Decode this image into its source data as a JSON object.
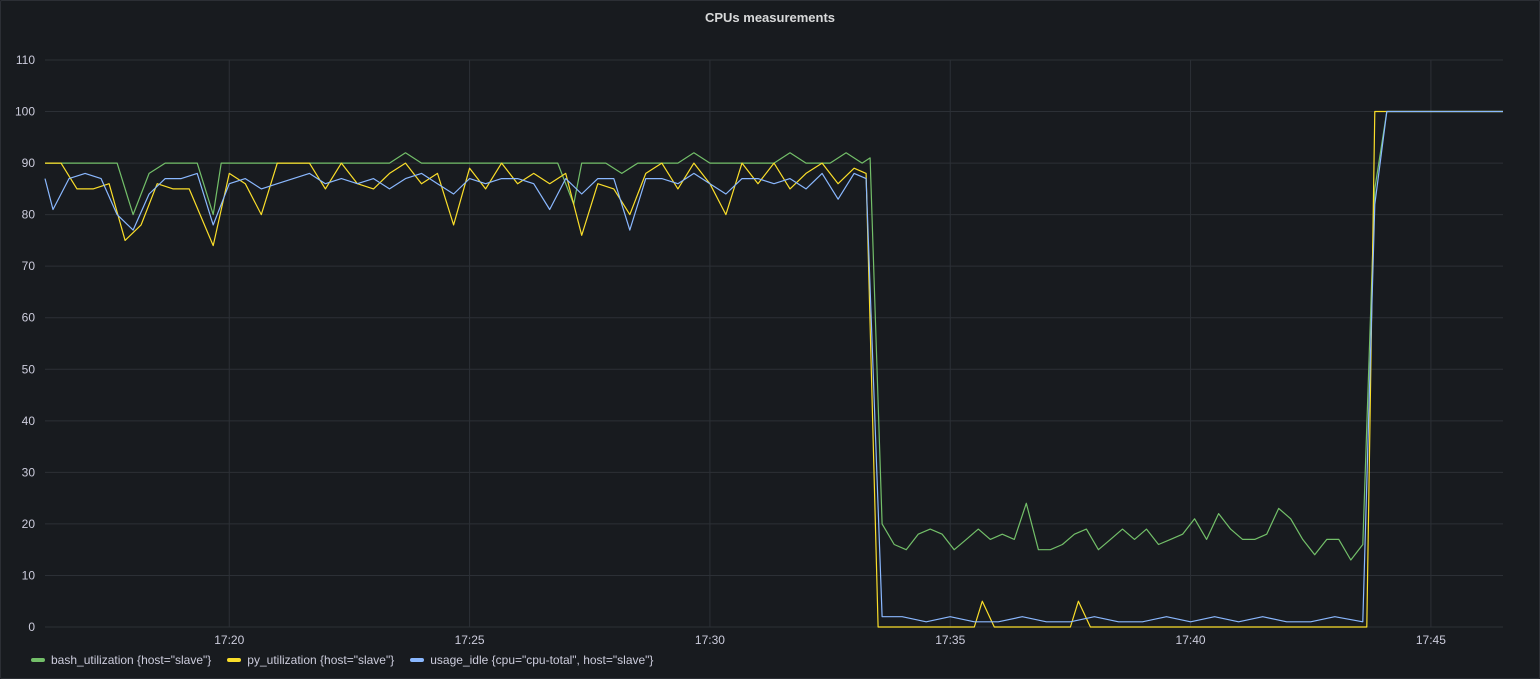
{
  "panel": {
    "title": "CPUs measurements"
  },
  "chart_data": {
    "type": "line",
    "title": "CPUs measurements",
    "ylim": [
      0,
      110
    ],
    "y_ticks": [
      0,
      10,
      20,
      30,
      40,
      50,
      60,
      70,
      80,
      90,
      100,
      110
    ],
    "x_range": [
      "17:16:10",
      "17:46:30"
    ],
    "x_ticks": [
      "17:20",
      "17:25",
      "17:30",
      "17:35",
      "17:40",
      "17:45"
    ],
    "grid": true,
    "legend_position": "bottom-left",
    "series": [
      {
        "name": "bash_utilization {host=\"slave\"}",
        "color": "#73bf69",
        "points": [
          [
            "17:16:10",
            90
          ],
          [
            "17:16:40",
            90
          ],
          [
            "17:17:10",
            90
          ],
          [
            "17:17:40",
            90
          ],
          [
            "17:18:00",
            80
          ],
          [
            "17:18:20",
            88
          ],
          [
            "17:18:40",
            90
          ],
          [
            "17:19:20",
            90
          ],
          [
            "17:19:40",
            80
          ],
          [
            "17:19:50",
            90
          ],
          [
            "17:20:20",
            90
          ],
          [
            "17:21:00",
            90
          ],
          [
            "17:21:40",
            90
          ],
          [
            "17:22:20",
            90
          ],
          [
            "17:22:40",
            90
          ],
          [
            "17:23:20",
            90
          ],
          [
            "17:23:40",
            92
          ],
          [
            "17:24:00",
            90
          ],
          [
            "17:24:20",
            90
          ],
          [
            "17:24:40",
            90
          ],
          [
            "17:25:00",
            90
          ],
          [
            "17:25:40",
            90
          ],
          [
            "17:26:20",
            90
          ],
          [
            "17:26:50",
            90
          ],
          [
            "17:27:10",
            82
          ],
          [
            "17:27:20",
            90
          ],
          [
            "17:27:50",
            90
          ],
          [
            "17:28:10",
            88
          ],
          [
            "17:28:30",
            90
          ],
          [
            "17:29:00",
            90
          ],
          [
            "17:29:20",
            90
          ],
          [
            "17:29:40",
            92
          ],
          [
            "17:30:00",
            90
          ],
          [
            "17:30:40",
            90
          ],
          [
            "17:31:20",
            90
          ],
          [
            "17:31:40",
            92
          ],
          [
            "17:32:00",
            90
          ],
          [
            "17:32:30",
            90
          ],
          [
            "17:32:50",
            92
          ],
          [
            "17:33:10",
            90
          ],
          [
            "17:33:20",
            91
          ],
          [
            "17:33:35",
            20
          ],
          [
            "17:33:50",
            16
          ],
          [
            "17:34:05",
            15
          ],
          [
            "17:34:20",
            18
          ],
          [
            "17:34:35",
            19
          ],
          [
            "17:34:50",
            18
          ],
          [
            "17:35:05",
            15
          ],
          [
            "17:35:20",
            17
          ],
          [
            "17:35:35",
            19
          ],
          [
            "17:35:50",
            17
          ],
          [
            "17:36:05",
            18
          ],
          [
            "17:36:20",
            17
          ],
          [
            "17:36:35",
            24
          ],
          [
            "17:36:50",
            15
          ],
          [
            "17:37:05",
            15
          ],
          [
            "17:37:20",
            16
          ],
          [
            "17:37:35",
            18
          ],
          [
            "17:37:50",
            19
          ],
          [
            "17:38:05",
            15
          ],
          [
            "17:38:20",
            17
          ],
          [
            "17:38:35",
            19
          ],
          [
            "17:38:50",
            17
          ],
          [
            "17:39:05",
            19
          ],
          [
            "17:39:20",
            16
          ],
          [
            "17:39:35",
            17
          ],
          [
            "17:39:50",
            18
          ],
          [
            "17:40:05",
            21
          ],
          [
            "17:40:20",
            17
          ],
          [
            "17:40:35",
            22
          ],
          [
            "17:40:50",
            19
          ],
          [
            "17:41:05",
            17
          ],
          [
            "17:41:20",
            17
          ],
          [
            "17:41:35",
            18
          ],
          [
            "17:41:50",
            23
          ],
          [
            "17:42:05",
            21
          ],
          [
            "17:42:20",
            17
          ],
          [
            "17:42:35",
            14
          ],
          [
            "17:42:50",
            17
          ],
          [
            "17:43:05",
            17
          ],
          [
            "17:43:20",
            13
          ],
          [
            "17:43:35",
            16
          ],
          [
            "17:43:50",
            85
          ],
          [
            "17:44:05",
            100
          ],
          [
            "17:46:30",
            100
          ]
        ]
      },
      {
        "name": "py_utilization {host=\"slave\"}",
        "color": "#fade2a",
        "points": [
          [
            "17:16:10",
            90
          ],
          [
            "17:16:30",
            90
          ],
          [
            "17:16:50",
            85
          ],
          [
            "17:17:10",
            85
          ],
          [
            "17:17:30",
            86
          ],
          [
            "17:17:50",
            75
          ],
          [
            "17:18:10",
            78
          ],
          [
            "17:18:30",
            86
          ],
          [
            "17:18:50",
            85
          ],
          [
            "17:19:10",
            85
          ],
          [
            "17:19:40",
            74
          ],
          [
            "17:20:00",
            88
          ],
          [
            "17:20:20",
            86
          ],
          [
            "17:20:40",
            80
          ],
          [
            "17:21:00",
            90
          ],
          [
            "17:21:40",
            90
          ],
          [
            "17:22:00",
            85
          ],
          [
            "17:22:20",
            90
          ],
          [
            "17:22:40",
            86
          ],
          [
            "17:23:00",
            85
          ],
          [
            "17:23:20",
            88
          ],
          [
            "17:23:40",
            90
          ],
          [
            "17:24:00",
            86
          ],
          [
            "17:24:20",
            88
          ],
          [
            "17:24:40",
            78
          ],
          [
            "17:25:00",
            89
          ],
          [
            "17:25:20",
            85
          ],
          [
            "17:25:40",
            90
          ],
          [
            "17:26:00",
            86
          ],
          [
            "17:26:20",
            88
          ],
          [
            "17:26:40",
            86
          ],
          [
            "17:27:00",
            88
          ],
          [
            "17:27:20",
            76
          ],
          [
            "17:27:40",
            86
          ],
          [
            "17:28:00",
            85
          ],
          [
            "17:28:20",
            80
          ],
          [
            "17:28:40",
            88
          ],
          [
            "17:29:00",
            90
          ],
          [
            "17:29:20",
            85
          ],
          [
            "17:29:40",
            90
          ],
          [
            "17:30:00",
            86
          ],
          [
            "17:30:20",
            80
          ],
          [
            "17:30:40",
            90
          ],
          [
            "17:31:00",
            86
          ],
          [
            "17:31:20",
            90
          ],
          [
            "17:31:40",
            85
          ],
          [
            "17:32:00",
            88
          ],
          [
            "17:32:20",
            90
          ],
          [
            "17:32:40",
            86
          ],
          [
            "17:33:00",
            89
          ],
          [
            "17:33:15",
            88
          ],
          [
            "17:33:30",
            0
          ],
          [
            "17:35:30",
            0
          ],
          [
            "17:35:40",
            5
          ],
          [
            "17:35:55",
            0
          ],
          [
            "17:37:30",
            0
          ],
          [
            "17:37:40",
            5
          ],
          [
            "17:37:55",
            0
          ],
          [
            "17:43:40",
            0
          ],
          [
            "17:43:50",
            100
          ],
          [
            "17:44:05",
            100
          ],
          [
            "17:46:30",
            100
          ]
        ]
      },
      {
        "name": "usage_idle {cpu=\"cpu-total\", host=\"slave\"}",
        "color": "#8ab8ff",
        "points": [
          [
            "17:16:10",
            87
          ],
          [
            "17:16:20",
            81
          ],
          [
            "17:16:40",
            87
          ],
          [
            "17:17:00",
            88
          ],
          [
            "17:17:20",
            87
          ],
          [
            "17:17:40",
            80
          ],
          [
            "17:18:00",
            77
          ],
          [
            "17:18:20",
            84
          ],
          [
            "17:18:40",
            87
          ],
          [
            "17:19:00",
            87
          ],
          [
            "17:19:20",
            88
          ],
          [
            "17:19:40",
            78
          ],
          [
            "17:20:00",
            86
          ],
          [
            "17:20:20",
            87
          ],
          [
            "17:20:40",
            85
          ],
          [
            "17:21:00",
            86
          ],
          [
            "17:21:40",
            88
          ],
          [
            "17:22:00",
            86
          ],
          [
            "17:22:20",
            87
          ],
          [
            "17:22:40",
            86
          ],
          [
            "17:23:00",
            87
          ],
          [
            "17:23:20",
            85
          ],
          [
            "17:23:40",
            87
          ],
          [
            "17:24:00",
            88
          ],
          [
            "17:24:20",
            86
          ],
          [
            "17:24:40",
            84
          ],
          [
            "17:25:00",
            87
          ],
          [
            "17:25:20",
            86
          ],
          [
            "17:25:40",
            87
          ],
          [
            "17:26:00",
            87
          ],
          [
            "17:26:20",
            86
          ],
          [
            "17:26:40",
            81
          ],
          [
            "17:27:00",
            87
          ],
          [
            "17:27:20",
            84
          ],
          [
            "17:27:40",
            87
          ],
          [
            "17:28:00",
            87
          ],
          [
            "17:28:20",
            77
          ],
          [
            "17:28:40",
            87
          ],
          [
            "17:29:00",
            87
          ],
          [
            "17:29:20",
            86
          ],
          [
            "17:29:40",
            88
          ],
          [
            "17:30:00",
            86
          ],
          [
            "17:30:20",
            84
          ],
          [
            "17:30:40",
            87
          ],
          [
            "17:31:00",
            87
          ],
          [
            "17:31:20",
            86
          ],
          [
            "17:31:40",
            87
          ],
          [
            "17:32:00",
            85
          ],
          [
            "17:32:20",
            88
          ],
          [
            "17:32:40",
            83
          ],
          [
            "17:33:00",
            88
          ],
          [
            "17:33:15",
            87
          ],
          [
            "17:33:35",
            2
          ],
          [
            "17:34:00",
            2
          ],
          [
            "17:34:30",
            1
          ],
          [
            "17:35:00",
            2
          ],
          [
            "17:35:30",
            1
          ],
          [
            "17:36:00",
            1
          ],
          [
            "17:36:30",
            2
          ],
          [
            "17:37:00",
            1
          ],
          [
            "17:37:30",
            1
          ],
          [
            "17:38:00",
            2
          ],
          [
            "17:38:30",
            1
          ],
          [
            "17:39:00",
            1
          ],
          [
            "17:39:30",
            2
          ],
          [
            "17:40:00",
            1
          ],
          [
            "17:40:30",
            2
          ],
          [
            "17:41:00",
            1
          ],
          [
            "17:41:30",
            2
          ],
          [
            "17:42:00",
            1
          ],
          [
            "17:42:30",
            1
          ],
          [
            "17:43:00",
            2
          ],
          [
            "17:43:35",
            1
          ],
          [
            "17:43:50",
            82
          ],
          [
            "17:44:05",
            100
          ],
          [
            "17:46:30",
            100
          ]
        ]
      }
    ]
  }
}
